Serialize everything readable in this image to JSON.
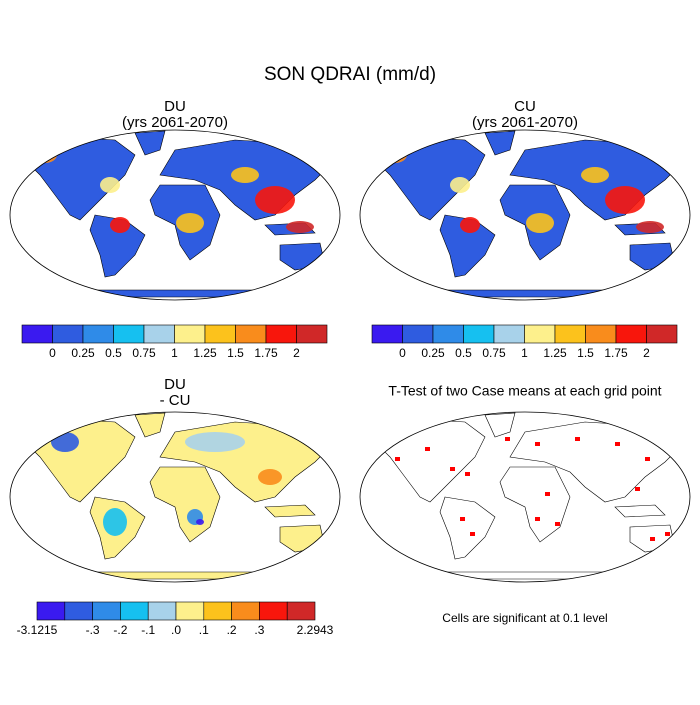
{
  "title": "SON QDRAI (mm/d)",
  "panels": [
    {
      "title": "DU",
      "subtitle": "(yrs 2061-2070)",
      "colorbar": {
        "colors": [
          "#3a1af0",
          "#2f5ce0",
          "#2f8be8",
          "#16c0f0",
          "#a8d2ea",
          "#fdf08c",
          "#fcc21c",
          "#f98c1c",
          "#f8160c",
          "#d02828"
        ],
        "labels": [
          null,
          0,
          0.25,
          0.5,
          0.75,
          1,
          1.25,
          1.5,
          1.75,
          2,
          null
        ]
      }
    },
    {
      "title": "CU",
      "subtitle": "(yrs 2061-2070)",
      "colorbar": {
        "colors": [
          "#3a1af0",
          "#2f5ce0",
          "#2f8be8",
          "#16c0f0",
          "#a8d2ea",
          "#fdf08c",
          "#fcc21c",
          "#f98c1c",
          "#f8160c",
          "#d02828"
        ],
        "labels": [
          null,
          0,
          0.25,
          0.5,
          0.75,
          1,
          1.25,
          1.5,
          1.75,
          2,
          null
        ]
      }
    },
    {
      "title": "DU",
      "subtitle": "- CU",
      "colorbar": {
        "colors": [
          "#3a1af0",
          "#2f5ce0",
          "#2f8be8",
          "#16c0f0",
          "#a8d2ea",
          "#fdf08c",
          "#fcc21c",
          "#f98c1c",
          "#f8160c",
          "#d02828"
        ],
        "labels": [
          -3.1215,
          null,
          {
            "value": -0.3,
            "label": "-.3"
          },
          {
            "value": -0.2,
            "label": "-.2"
          },
          {
            "value": -0.1,
            "label": "-.1"
          },
          {
            "value": 0,
            "label": ".0"
          },
          {
            "value": 0.1,
            "label": ".1"
          },
          {
            "value": 0.2,
            "label": ".2"
          },
          {
            "value": 0.3,
            "label": ".3"
          },
          null,
          2.2943
        ]
      }
    },
    {
      "title": "T-Test of two Case means at each grid point",
      "note": "Cells are significant at 0.1 level"
    }
  ]
}
